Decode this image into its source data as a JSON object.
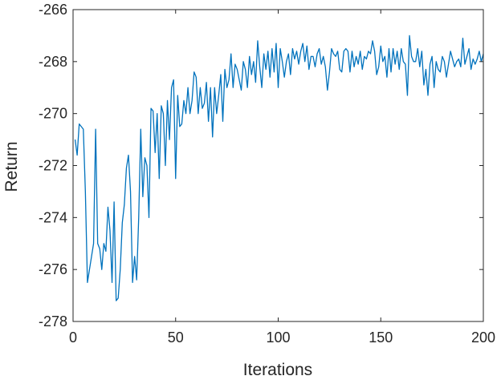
{
  "chart_data": {
    "type": "line",
    "title": "",
    "xlabel": "Iterations",
    "ylabel": "Return",
    "xlim": [
      0,
      200
    ],
    "ylim": [
      -278,
      -266
    ],
    "xticks": [
      0,
      50,
      100,
      150,
      200
    ],
    "yticks": [
      -278,
      -276,
      -274,
      -272,
      -270,
      -268,
      -266
    ],
    "grid": false,
    "legend": "none",
    "line_color": "#0072BD",
    "series": [
      {
        "x_start": 1,
        "x_step": 1,
        "values": [
          -271.0,
          -271.6,
          -270.4,
          -270.5,
          -270.6,
          -273.0,
          -276.5,
          -276.0,
          -275.5,
          -275.0,
          -270.6,
          -275.0,
          -275.2,
          -276.0,
          -275.0,
          -275.3,
          -273.6,
          -274.5,
          -276.5,
          -273.4,
          -277.2,
          -277.1,
          -276.0,
          -274.2,
          -273.5,
          -272.1,
          -271.6,
          -273.0,
          -276.5,
          -275.5,
          -276.4,
          -274.0,
          -270.6,
          -273.2,
          -271.7,
          -272.0,
          -274.0,
          -269.8,
          -269.9,
          -271.5,
          -270.0,
          -272.5,
          -269.7,
          -270.0,
          -272.0,
          -269.5,
          -271.0,
          -269.0,
          -268.7,
          -272.5,
          -269.3,
          -270.5,
          -270.4,
          -269.5,
          -270.0,
          -269.0,
          -270.0,
          -269.5,
          -268.4,
          -268.6,
          -270.0,
          -269.0,
          -269.8,
          -269.6,
          -268.8,
          -270.3,
          -269.0,
          -270.9,
          -269.0,
          -270.0,
          -269.3,
          -268.5,
          -270.3,
          -268.3,
          -269.0,
          -268.7,
          -267.7,
          -269.0,
          -268.1,
          -268.3,
          -268.7,
          -269.1,
          -268.0,
          -268.3,
          -269.0,
          -267.8,
          -268.5,
          -268.0,
          -268.8,
          -267.2,
          -268.2,
          -269.0,
          -267.7,
          -268.3,
          -267.6,
          -268.6,
          -267.5,
          -268.4,
          -267.3,
          -269.0,
          -267.5,
          -268.0,
          -268.6,
          -268.0,
          -267.7,
          -268.5,
          -267.5,
          -267.9,
          -267.6,
          -268.1,
          -267.6,
          -267.3,
          -268.0,
          -267.4,
          -268.3,
          -267.8,
          -267.8,
          -268.2,
          -267.7,
          -267.5,
          -268.1,
          -267.8,
          -268.2,
          -269.1,
          -268.4,
          -267.5,
          -267.7,
          -267.8,
          -267.6,
          -268.3,
          -268.4,
          -267.6,
          -267.5,
          -267.6,
          -268.4,
          -267.6,
          -268.2,
          -267.8,
          -268.1,
          -267.6,
          -268.3,
          -267.8,
          -267.9,
          -267.6,
          -267.7,
          -267.2,
          -267.6,
          -268.5,
          -268.2,
          -267.4,
          -268.0,
          -267.8,
          -268.6,
          -267.5,
          -268.4,
          -267.5,
          -268.1,
          -267.6,
          -268.3,
          -267.5,
          -268.0,
          -268.1,
          -269.3,
          -267.0,
          -267.8,
          -268.0,
          -268.0,
          -267.5,
          -268.2,
          -267.6,
          -268.9,
          -268.3,
          -269.3,
          -268.1,
          -267.8,
          -269.0,
          -268.0,
          -268.3,
          -268.4,
          -267.8,
          -268.0,
          -268.6,
          -268.1,
          -267.6,
          -267.9,
          -268.2,
          -268.0,
          -267.9,
          -268.2,
          -267.1,
          -268.1,
          -267.8,
          -267.5,
          -268.3,
          -267.9,
          -268.1,
          -267.9,
          -267.6,
          -268.0,
          -267.7
        ]
      }
    ]
  }
}
